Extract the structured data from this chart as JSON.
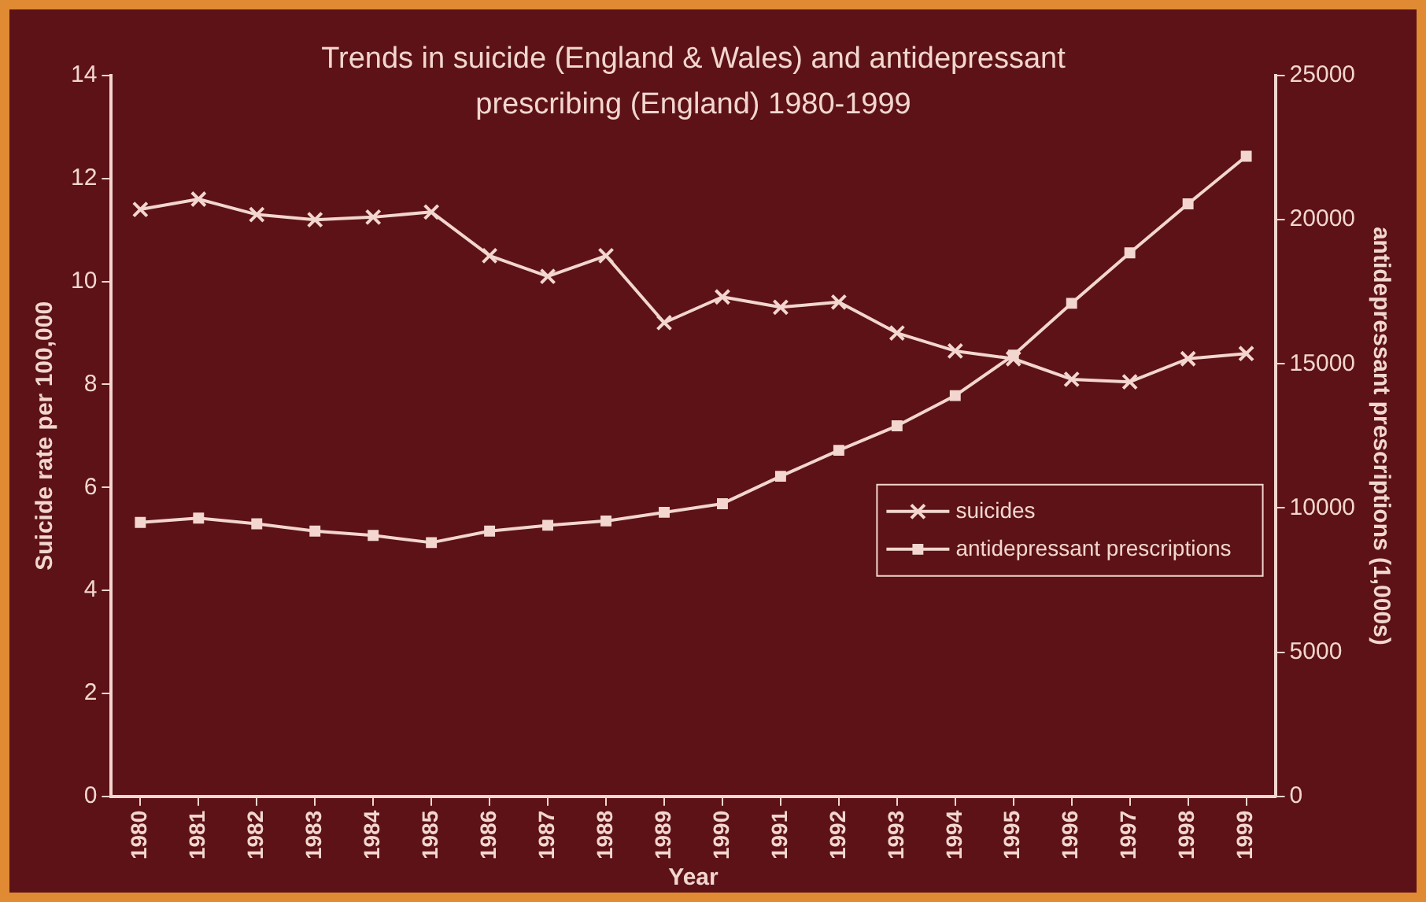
{
  "chart_data": {
    "type": "line",
    "title": "Trends in suicide (England & Wales) and antidepressant prescribing (England) 1980-1999",
    "xlabel": "Year",
    "ylabel": "Suicide rate per 100,000",
    "y2label": "antidepressant prescriptions (1,000s)",
    "categories": [
      "1980",
      "1981",
      "1982",
      "1983",
      "1984",
      "1985",
      "1986",
      "1987",
      "1988",
      "1989",
      "1990",
      "1991",
      "1992",
      "1993",
      "1994",
      "1995",
      "1996",
      "1997",
      "1998",
      "1999"
    ],
    "series": [
      {
        "name": "suicides",
        "color": "#f2d6cf",
        "marker": "cross",
        "values": [
          11.4,
          11.6,
          11.3,
          11.2,
          11.25,
          11.35,
          10.5,
          10.1,
          10.5,
          9.2,
          9.7,
          9.5,
          9.6,
          9.0,
          8.65,
          8.5,
          8.1,
          8.05,
          8.5,
          8.6
        ]
      },
      {
        "name": "antidepressant prescriptions",
        "color": "#f2d6cf",
        "marker": "square",
        "axis": "y2",
        "values": [
          9500,
          9650,
          9450,
          9200,
          9050,
          8800,
          9200,
          9400,
          9550,
          9850,
          10150,
          11100,
          12000,
          12850,
          13900,
          15300,
          17100,
          18850,
          20550,
          22200
        ]
      }
    ],
    "ylim": [
      0,
      14
    ],
    "yticks": [
      0,
      2,
      4,
      6,
      8,
      10,
      12,
      14
    ],
    "y2lim": [
      0,
      25000
    ],
    "y2ticks": [
      0,
      5000,
      10000,
      15000,
      20000,
      25000
    ],
    "grid": false,
    "legend": "right",
    "line_style": "solid"
  }
}
